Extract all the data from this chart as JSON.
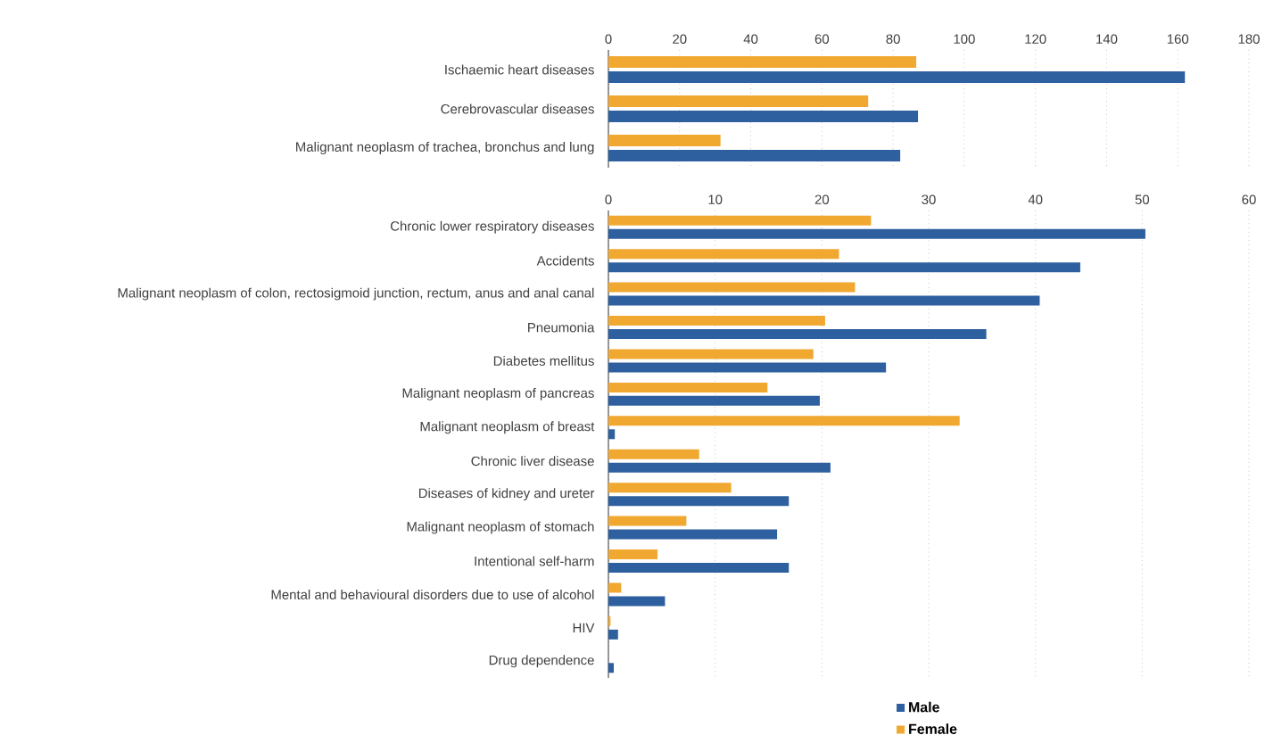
{
  "chart_data": [
    {
      "type": "bar",
      "orientation": "horizontal",
      "categories": [
        "Ischaemic heart diseases",
        "Cerebrovascular diseases",
        "Malignant neoplasm of trachea, bronchus and lung"
      ],
      "series": [
        {
          "color": "#2e5f9e",
          "values": [
            162,
            87,
            82
          ]
        },
        {
          "color": "#f0a830",
          "values": [
            86.5,
            73,
            31.5
          ]
        }
      ],
      "xlim": [
        0,
        180
      ],
      "xticks": [
        0,
        20,
        40,
        60,
        80,
        100,
        120,
        140,
        160,
        180
      ],
      "grid": "x",
      "legend": false
    },
    {
      "type": "bar",
      "orientation": "horizontal",
      "categories": [
        "Chronic lower respiratory diseases",
        "Accidents",
        "Malignant neoplasm of colon, rectosigmoid junction, rectum, anus and anal canal",
        "Pneumonia",
        "Diabetes mellitus",
        "Malignant neoplasm of pancreas",
        "Malignant neoplasm of breast",
        "Chronic liver disease",
        "Diseases of kidney and ureter",
        "Malignant neoplasm of stomach",
        "Intentional self-harm",
        "Mental and behavioural disorders due to use of alcohol",
        "HIV",
        "Drug dependence"
      ],
      "series": [
        {
          "name": "Male",
          "color": "#2e5f9e",
          "values": [
            50.3,
            44.2,
            40.4,
            35.4,
            26,
            19.8,
            0.6,
            20.8,
            16.9,
            15.8,
            16.9,
            5.3,
            0.9,
            0.5
          ]
        },
        {
          "name": "Female",
          "color": "#f0a830",
          "values": [
            24.6,
            21.6,
            23.1,
            20.3,
            19.2,
            14.9,
            32.9,
            8.5,
            11.5,
            7.3,
            4.6,
            1.2,
            0.2,
            null
          ]
        }
      ],
      "xlim": [
        0,
        60
      ],
      "xticks": [
        0,
        10,
        20,
        30,
        40,
        50,
        60
      ],
      "grid": "x",
      "legend": "bottom"
    }
  ]
}
